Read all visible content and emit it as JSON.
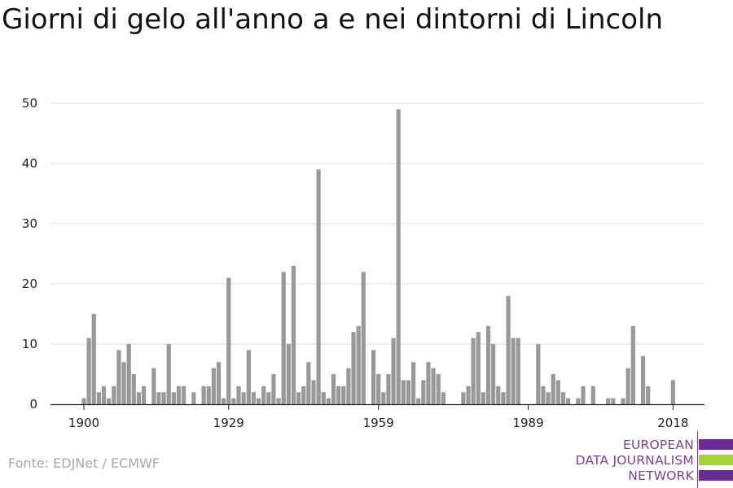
{
  "title": "Giorni di gelo all'anno a e nei dintorni di Lincoln",
  "source": "Fonte: EDJNet / ECMWF",
  "logo": {
    "lines": [
      "EUROPEAN",
      "DATA JOURNALISM",
      "NETWORK"
    ],
    "colors": {
      "text": "#7b3f9d",
      "bar_purple": "#6a2c91",
      "bar_green": "#a6d531"
    }
  },
  "chart_data": {
    "type": "bar",
    "title": "Giorni di gelo all'anno a e nei dintorni di Lincoln",
    "xlabel": "",
    "ylabel": "",
    "ylim": [
      0,
      50
    ],
    "yticks": [
      0,
      10,
      20,
      30,
      40,
      50
    ],
    "xticks": [
      1900,
      1929,
      1959,
      1989,
      2018
    ],
    "grid": true,
    "bar_color": "#999999",
    "x": [
      1900,
      1901,
      1902,
      1903,
      1904,
      1905,
      1906,
      1907,
      1908,
      1909,
      1910,
      1911,
      1912,
      1913,
      1914,
      1915,
      1916,
      1917,
      1918,
      1919,
      1920,
      1921,
      1922,
      1923,
      1924,
      1925,
      1926,
      1927,
      1928,
      1929,
      1930,
      1931,
      1932,
      1933,
      1934,
      1935,
      1936,
      1937,
      1938,
      1939,
      1940,
      1941,
      1942,
      1943,
      1944,
      1945,
      1946,
      1947,
      1948,
      1949,
      1950,
      1951,
      1952,
      1953,
      1954,
      1955,
      1956,
      1957,
      1958,
      1959,
      1960,
      1961,
      1962,
      1963,
      1964,
      1965,
      1966,
      1967,
      1968,
      1969,
      1970,
      1971,
      1972,
      1973,
      1974,
      1975,
      1976,
      1977,
      1978,
      1979,
      1980,
      1981,
      1982,
      1983,
      1984,
      1985,
      1986,
      1987,
      1988,
      1989,
      1990,
      1991,
      1992,
      1993,
      1994,
      1995,
      1996,
      1997,
      1998,
      1999,
      2000,
      2001,
      2002,
      2003,
      2004,
      2005,
      2006,
      2007,
      2008,
      2009,
      2010,
      2011,
      2012,
      2013,
      2014,
      2015,
      2016,
      2017,
      2018,
      2019,
      2020
    ],
    "values": [
      1,
      11,
      15,
      2,
      3,
      1,
      3,
      9,
      7,
      10,
      5,
      2,
      3,
      0,
      6,
      2,
      2,
      10,
      2,
      3,
      3,
      0,
      2,
      0,
      3,
      3,
      6,
      7,
      1,
      21,
      1,
      3,
      2,
      9,
      2,
      1,
      3,
      2,
      5,
      1,
      22,
      10,
      23,
      2,
      3,
      7,
      4,
      39,
      2,
      1,
      5,
      3,
      3,
      6,
      12,
      13,
      22,
      0,
      9,
      5,
      2,
      5,
      11,
      49,
      4,
      4,
      7,
      1,
      4,
      7,
      6,
      5,
      2,
      0,
      0,
      0,
      2,
      3,
      11,
      12,
      2,
      13,
      10,
      3,
      2,
      18,
      11,
      11,
      0,
      0,
      0,
      10,
      3,
      2,
      5,
      4,
      2,
      1,
      0,
      1,
      3,
      0,
      3,
      0,
      0,
      1,
      1,
      0,
      1,
      6,
      13,
      0,
      8,
      3,
      0,
      0,
      0,
      0,
      4,
      0,
      0
    ]
  }
}
